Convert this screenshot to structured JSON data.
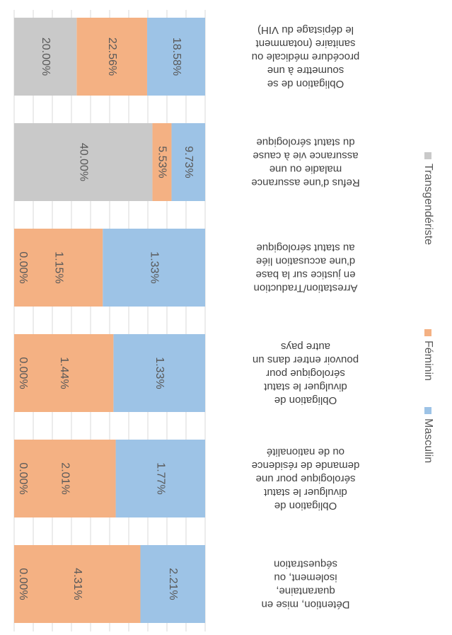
{
  "chart_data": {
    "type": "bar",
    "stacked": "percent",
    "orientation": "horizontal",
    "categories": [
      "Détention, mise en quarantaine, isolement, ou séquestration",
      "Obligation de divulguer le statut sérologique pour une demande de résidence ou de nationalité",
      "Obligation de divulguer le statut sérologique pour pouvoir entrer dans un autre pays",
      "Arrestation/Traduction en justice sur la base d’une accusation liée au statut sérologique",
      "Refus d’une assurance maladie ou une assurance vie à cause du statut sérologique",
      "Obligation de se soumettre à une procédure médicale ou sanitaire (notamment le dépistage du VIH)"
    ],
    "series": [
      {
        "name": "Masculin",
        "color": "#9dc3e6",
        "values": [
          2.21,
          1.77,
          1.33,
          1.33,
          9.73,
          18.58
        ],
        "value_labels": [
          "2.21%",
          "1.77%",
          "1.33%",
          "1.33%",
          "9.73%",
          "18.58%"
        ]
      },
      {
        "name": "Féminin",
        "color": "#f4b183",
        "values": [
          4.31,
          2.01,
          1.44,
          1.15,
          5.53,
          22.56
        ],
        "value_labels": [
          "4.31%",
          "2.01%",
          "1.44%",
          "1.15%",
          "5.53%",
          "22.56%"
        ]
      },
      {
        "name": "Transgendériste",
        "color": "#c9c9c9",
        "values": [
          0,
          0,
          0,
          0,
          40,
          20
        ],
        "value_labels": [
          "0.00%",
          "0.00%",
          "0.00%",
          "0.00%",
          "40.00%",
          "20.00%"
        ]
      }
    ],
    "xlim": [
      0,
      100
    ],
    "xticks": [
      0,
      10,
      20,
      30,
      40,
      50,
      60,
      70,
      80,
      90,
      100
    ],
    "grid": true,
    "legend": "bottom"
  }
}
